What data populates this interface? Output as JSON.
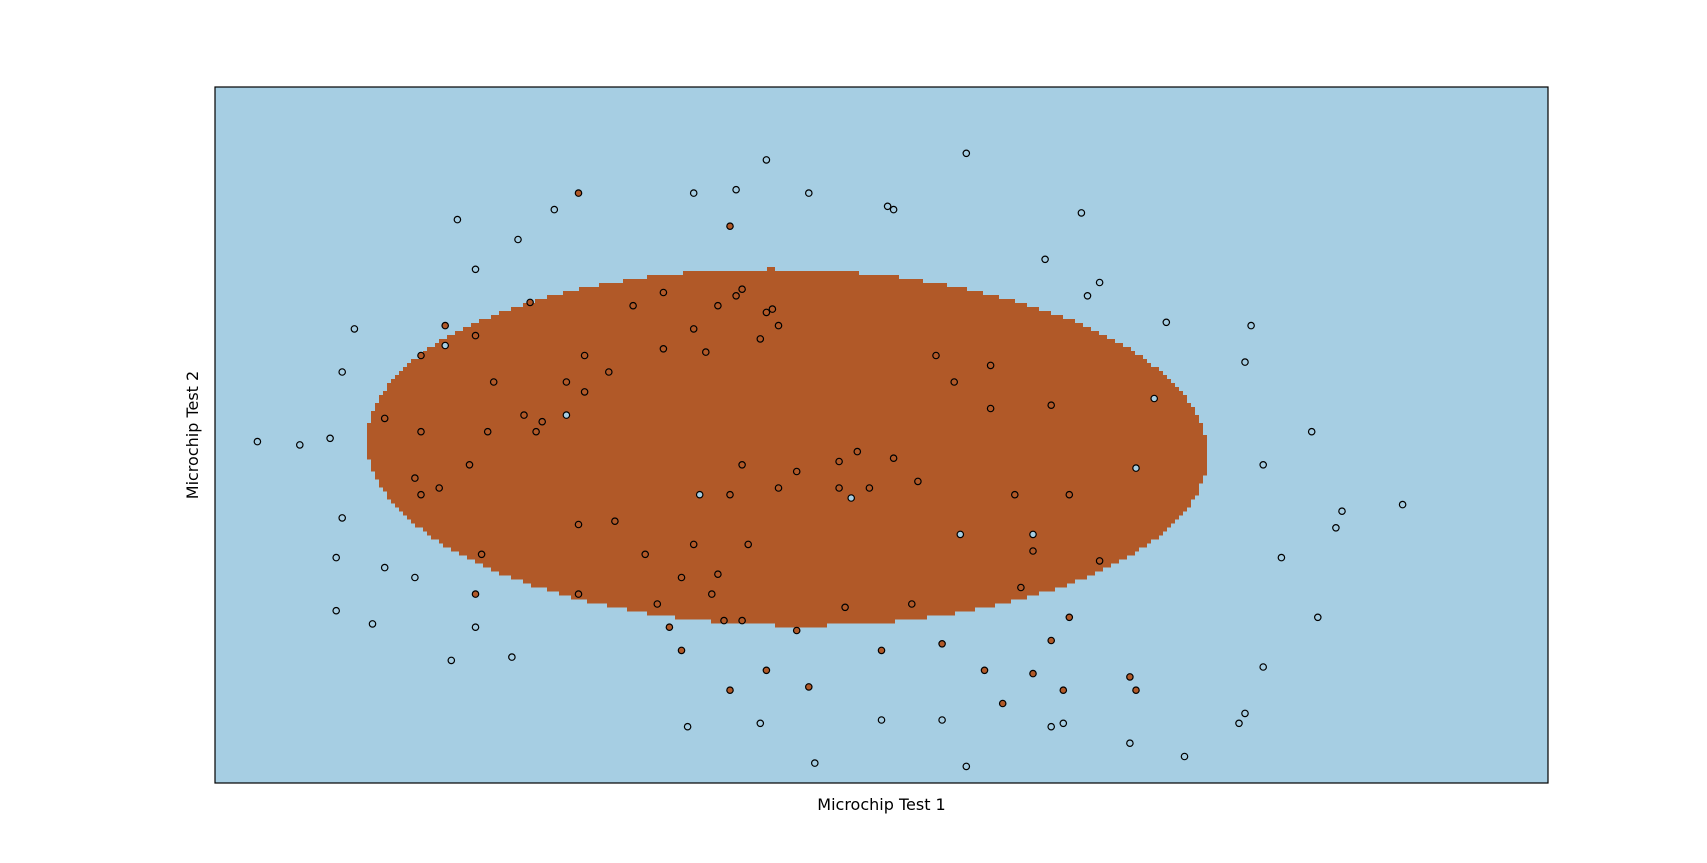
{
  "chart_data": {
    "type": "scatter",
    "title": "",
    "xlabel": "Microchip Test 1",
    "ylabel": "Microchip Test 2",
    "xlim": [
      -1.0,
      1.2
    ],
    "ylim": [
      -0.9,
      1.2
    ],
    "grid": false,
    "ticks_visible": false,
    "colors": {
      "negative_region": "#a6cee3",
      "positive_region": "#b15928",
      "negative_point": "#a6cee3",
      "positive_point": "#b15928",
      "point_edge": "#000000",
      "frame": "#000000"
    },
    "decision_boundary": {
      "shape": "ellipse",
      "center": [
        -0.0556,
        0.1133
      ],
      "semi_axes": [
        0.6944,
        0.5367
      ],
      "rotation_deg": -4
    },
    "series": [
      {
        "class": 1,
        "points": [
          [
            -0.4,
            0.88
          ],
          [
            -0.26,
            0.58
          ],
          [
            -0.15,
            0.78
          ],
          [
            -0.13,
            0.59
          ],
          [
            -0.08,
            0.53
          ],
          [
            -0.31,
            0.54
          ],
          [
            -0.17,
            0.54
          ],
          [
            -0.09,
            0.52
          ],
          [
            -0.14,
            0.57
          ],
          [
            -0.1,
            0.44
          ],
          [
            -0.07,
            0.48
          ],
          [
            -0.21,
            0.47
          ],
          [
            -0.19,
            0.4
          ],
          [
            -0.26,
            0.41
          ],
          [
            -0.35,
            0.34
          ],
          [
            -0.42,
            0.31
          ],
          [
            -0.39,
            0.39
          ],
          [
            -0.48,
            0.55
          ],
          [
            -0.62,
            0.48
          ],
          [
            -0.66,
            0.39
          ],
          [
            -0.57,
            0.45
          ],
          [
            -0.54,
            0.31
          ],
          [
            -0.49,
            0.21
          ],
          [
            -0.46,
            0.19
          ],
          [
            -0.47,
            0.16
          ],
          [
            -0.39,
            0.28
          ],
          [
            -0.58,
            0.06
          ],
          [
            -0.66,
            0.16
          ],
          [
            -0.55,
            0.16
          ],
          [
            -0.72,
            0.2
          ],
          [
            -0.67,
            0.02
          ],
          [
            -0.63,
            -0.01
          ],
          [
            -0.66,
            -0.03
          ],
          [
            -0.56,
            -0.21
          ],
          [
            -0.57,
            -0.33
          ],
          [
            -0.4,
            -0.12
          ],
          [
            -0.34,
            -0.11
          ],
          [
            -0.21,
            -0.18
          ],
          [
            -0.12,
            -0.18
          ],
          [
            -0.29,
            -0.21
          ],
          [
            -0.13,
            -0.41
          ],
          [
            -0.04,
            -0.44
          ],
          [
            -0.23,
            -0.5
          ],
          [
            -0.25,
            -0.43
          ],
          [
            -0.16,
            -0.41
          ],
          [
            -0.27,
            -0.36
          ],
          [
            -0.18,
            -0.33
          ],
          [
            -0.23,
            -0.28
          ],
          [
            -0.17,
            -0.27
          ],
          [
            -0.4,
            -0.33
          ],
          [
            -0.15,
            -0.03
          ],
          [
            -0.07,
            -0.01
          ],
          [
            0.03,
            -0.01
          ],
          [
            0.08,
            -0.01
          ],
          [
            0.16,
            0.01
          ],
          [
            0.03,
            0.07
          ],
          [
            -0.13,
            0.06
          ],
          [
            -0.04,
            0.04
          ],
          [
            0.06,
            0.1
          ],
          [
            0.12,
            0.08
          ],
          [
            0.28,
            0.23
          ],
          [
            0.38,
            0.24
          ],
          [
            0.22,
            0.31
          ],
          [
            0.19,
            0.39
          ],
          [
            0.28,
            0.36
          ],
          [
            0.32,
            -0.03
          ],
          [
            0.35,
            -0.2
          ],
          [
            0.41,
            -0.03
          ],
          [
            0.46,
            -0.23
          ],
          [
            0.38,
            -0.47
          ],
          [
            -0.02,
            -0.61
          ],
          [
            0.1,
            -0.5
          ],
          [
            0.2,
            -0.48
          ],
          [
            0.33,
            -0.31
          ],
          [
            0.41,
            -0.4
          ],
          [
            -0.15,
            -0.62
          ],
          [
            -0.09,
            -0.56
          ],
          [
            0.04,
            -0.37
          ],
          [
            0.15,
            -0.36
          ],
          [
            0.27,
            -0.56
          ],
          [
            0.51,
            -0.58
          ],
          [
            0.52,
            -0.62
          ],
          [
            0.3,
            -0.66
          ],
          [
            0.35,
            -0.57
          ],
          [
            0.4,
            -0.62
          ]
        ]
      },
      {
        "class": 0,
        "points": [
          [
            -0.09,
            0.98
          ],
          [
            0.24,
            1.0
          ],
          [
            -0.14,
            0.89
          ],
          [
            -0.21,
            0.88
          ],
          [
            -0.02,
            0.88
          ],
          [
            0.11,
            0.84
          ],
          [
            0.37,
            0.68
          ],
          [
            0.46,
            0.61
          ],
          [
            0.44,
            0.57
          ],
          [
            0.57,
            0.49
          ],
          [
            0.43,
            0.82
          ],
          [
            0.12,
            0.83
          ],
          [
            -0.44,
            0.83
          ],
          [
            -0.5,
            0.74
          ],
          [
            -0.6,
            0.8
          ],
          [
            -0.57,
            0.65
          ],
          [
            -0.77,
            0.47
          ],
          [
            -0.79,
            0.34
          ],
          [
            -0.81,
            0.14
          ],
          [
            -0.86,
            0.12
          ],
          [
            -0.93,
            0.13
          ],
          [
            -0.79,
            -0.1
          ],
          [
            -0.8,
            -0.22
          ],
          [
            -0.8,
            -0.38
          ],
          [
            -0.67,
            -0.28
          ],
          [
            -0.74,
            -0.42
          ],
          [
            -0.72,
            -0.25
          ],
          [
            -0.57,
            -0.43
          ],
          [
            -0.51,
            -0.52
          ],
          [
            -0.61,
            -0.53
          ],
          [
            -0.22,
            -0.73
          ],
          [
            -0.1,
            -0.72
          ],
          [
            -0.01,
            -0.84
          ],
          [
            0.1,
            -0.71
          ],
          [
            0.2,
            -0.71
          ],
          [
            0.24,
            -0.85
          ],
          [
            0.38,
            -0.73
          ],
          [
            0.4,
            -0.72
          ],
          [
            0.51,
            -0.78
          ],
          [
            0.6,
            -0.82
          ],
          [
            0.7,
            -0.69
          ],
          [
            0.69,
            -0.72
          ],
          [
            0.73,
            -0.55
          ],
          [
            0.82,
            -0.4
          ],
          [
            0.76,
            -0.22
          ],
          [
            0.85,
            -0.13
          ],
          [
            0.86,
            -0.08
          ],
          [
            0.96,
            -0.06
          ],
          [
            0.73,
            0.06
          ],
          [
            0.81,
            0.16
          ],
          [
            0.7,
            0.37
          ],
          [
            0.71,
            0.48
          ],
          [
            0.55,
            0.26
          ],
          [
            0.52,
            0.05
          ],
          [
            0.35,
            -0.15
          ],
          [
            -0.62,
            0.42
          ],
          [
            -0.42,
            0.21
          ],
          [
            -0.2,
            -0.03
          ],
          [
            0.05,
            -0.04
          ],
          [
            0.23,
            -0.15
          ]
        ]
      }
    ]
  }
}
